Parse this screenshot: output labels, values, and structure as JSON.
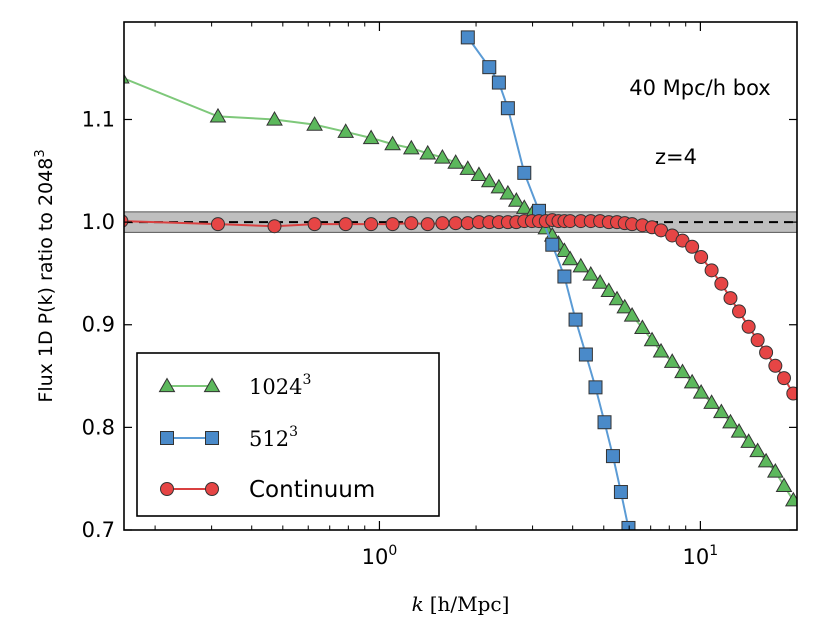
{
  "chart_data": {
    "type": "line",
    "xscale": "log",
    "xlim": [
      0.16,
      20
    ],
    "ylim": [
      0.7,
      1.195
    ],
    "xlabel": {
      "var": "k",
      "units": "[h/Mpc]"
    },
    "ylabel": {
      "text": "Flux 1D P(k) ratio to 2048",
      "sup": "3"
    },
    "xticks": [
      {
        "value": 1,
        "base": "10",
        "exp": "0"
      },
      {
        "value": 10,
        "base": "10",
        "exp": "1"
      }
    ],
    "yticks": [
      {
        "value": 0.7,
        "label": "0.7"
      },
      {
        "value": 0.8,
        "label": "0.8"
      },
      {
        "value": 0.9,
        "label": "0.9"
      },
      {
        "value": 1.0,
        "label": "1.0"
      },
      {
        "value": 1.1,
        "label": "1.1"
      }
    ],
    "annotations": [
      "40 Mpc/h box",
      "z=4"
    ],
    "reference_line": {
      "y": 1.0,
      "style": "dashed"
    },
    "tolerance_band": {
      "y": [
        0.99,
        1.01
      ],
      "color": "#bfbfbf"
    },
    "legend": {
      "position": "lower-left"
    },
    "series": [
      {
        "name": "1024",
        "sup": "3",
        "marker": "triangle",
        "line_color": "#7ec87a",
        "marker_color": "#5cb85c",
        "x": [
          0.157,
          0.314,
          0.471,
          0.628,
          0.785,
          0.942,
          1.099,
          1.257,
          1.414,
          1.571,
          1.728,
          1.885,
          2.042,
          2.199,
          2.356,
          2.513,
          2.67,
          2.827,
          2.985,
          3.142,
          3.299,
          3.456,
          3.613,
          3.77,
          3.927,
          4.241,
          4.555,
          4.87,
          5.184,
          5.498,
          5.812,
          6.126,
          6.597,
          7.069,
          7.54,
          8.168,
          8.796,
          9.425,
          10.053,
          10.838,
          11.624,
          12.409,
          13.195,
          14.137,
          15.08,
          16.022,
          17.122,
          18.221,
          19.478
        ],
        "y": [
          1.141,
          1.103,
          1.1,
          1.095,
          1.088,
          1.082,
          1.076,
          1.072,
          1.067,
          1.063,
          1.058,
          1.052,
          1.046,
          1.04,
          1.034,
          1.028,
          1.021,
          1.014,
          1.008,
          1.001,
          0.994,
          0.987,
          0.979,
          0.972,
          0.964,
          0.957,
          0.949,
          0.941,
          0.933,
          0.925,
          0.917,
          0.909,
          0.897,
          0.885,
          0.874,
          0.864,
          0.854,
          0.844,
          0.834,
          0.824,
          0.815,
          0.805,
          0.796,
          0.786,
          0.777,
          0.767,
          0.757,
          0.743,
          0.729
        ]
      },
      {
        "name": "512",
        "sup": "3",
        "marker": "square",
        "line_color": "#5b9bd5",
        "marker_color": "#4a8ac9",
        "x": [
          1.885,
          2.199,
          2.356,
          2.513,
          2.827,
          3.142,
          3.456,
          3.77,
          4.084,
          4.398,
          4.712,
          5.027,
          5.341,
          5.655,
          5.969
        ],
        "y": [
          1.18,
          1.151,
          1.136,
          1.111,
          1.048,
          1.011,
          0.978,
          0.947,
          0.905,
          0.871,
          0.839,
          0.805,
          0.772,
          0.737,
          0.702
        ]
      },
      {
        "name": "Continuum",
        "marker": "circle",
        "line_color": "#d94040",
        "marker_color": "#e64545",
        "x": [
          0.157,
          0.314,
          0.471,
          0.628,
          0.785,
          0.942,
          1.099,
          1.257,
          1.414,
          1.571,
          1.728,
          1.885,
          2.042,
          2.199,
          2.356,
          2.513,
          2.67,
          2.827,
          2.985,
          3.142,
          3.299,
          3.456,
          3.613,
          3.77,
          3.927,
          4.241,
          4.555,
          4.87,
          5.184,
          5.498,
          5.812,
          6.126,
          6.597,
          7.069,
          7.54,
          8.168,
          8.796,
          9.425,
          10.053,
          10.838,
          11.624,
          12.409,
          13.195,
          14.137,
          15.08,
          16.022,
          17.122,
          18.221,
          19.478
        ],
        "y": [
          1.001,
          0.998,
          0.996,
          0.998,
          0.998,
          0.998,
          0.998,
          0.999,
          0.998,
          0.999,
          0.999,
          0.999,
          1.0,
          1.0,
          1.0,
          1.0,
          1.0,
          1.001,
          1.001,
          1.001,
          1.001,
          1.002,
          1.001,
          1.001,
          1.001,
          1.001,
          1.001,
          1.001,
          1.0,
          1.0,
          0.999,
          0.998,
          0.997,
          0.995,
          0.992,
          0.987,
          0.982,
          0.976,
          0.966,
          0.953,
          0.94,
          0.926,
          0.913,
          0.898,
          0.885,
          0.873,
          0.86,
          0.848,
          0.833
        ]
      }
    ]
  }
}
